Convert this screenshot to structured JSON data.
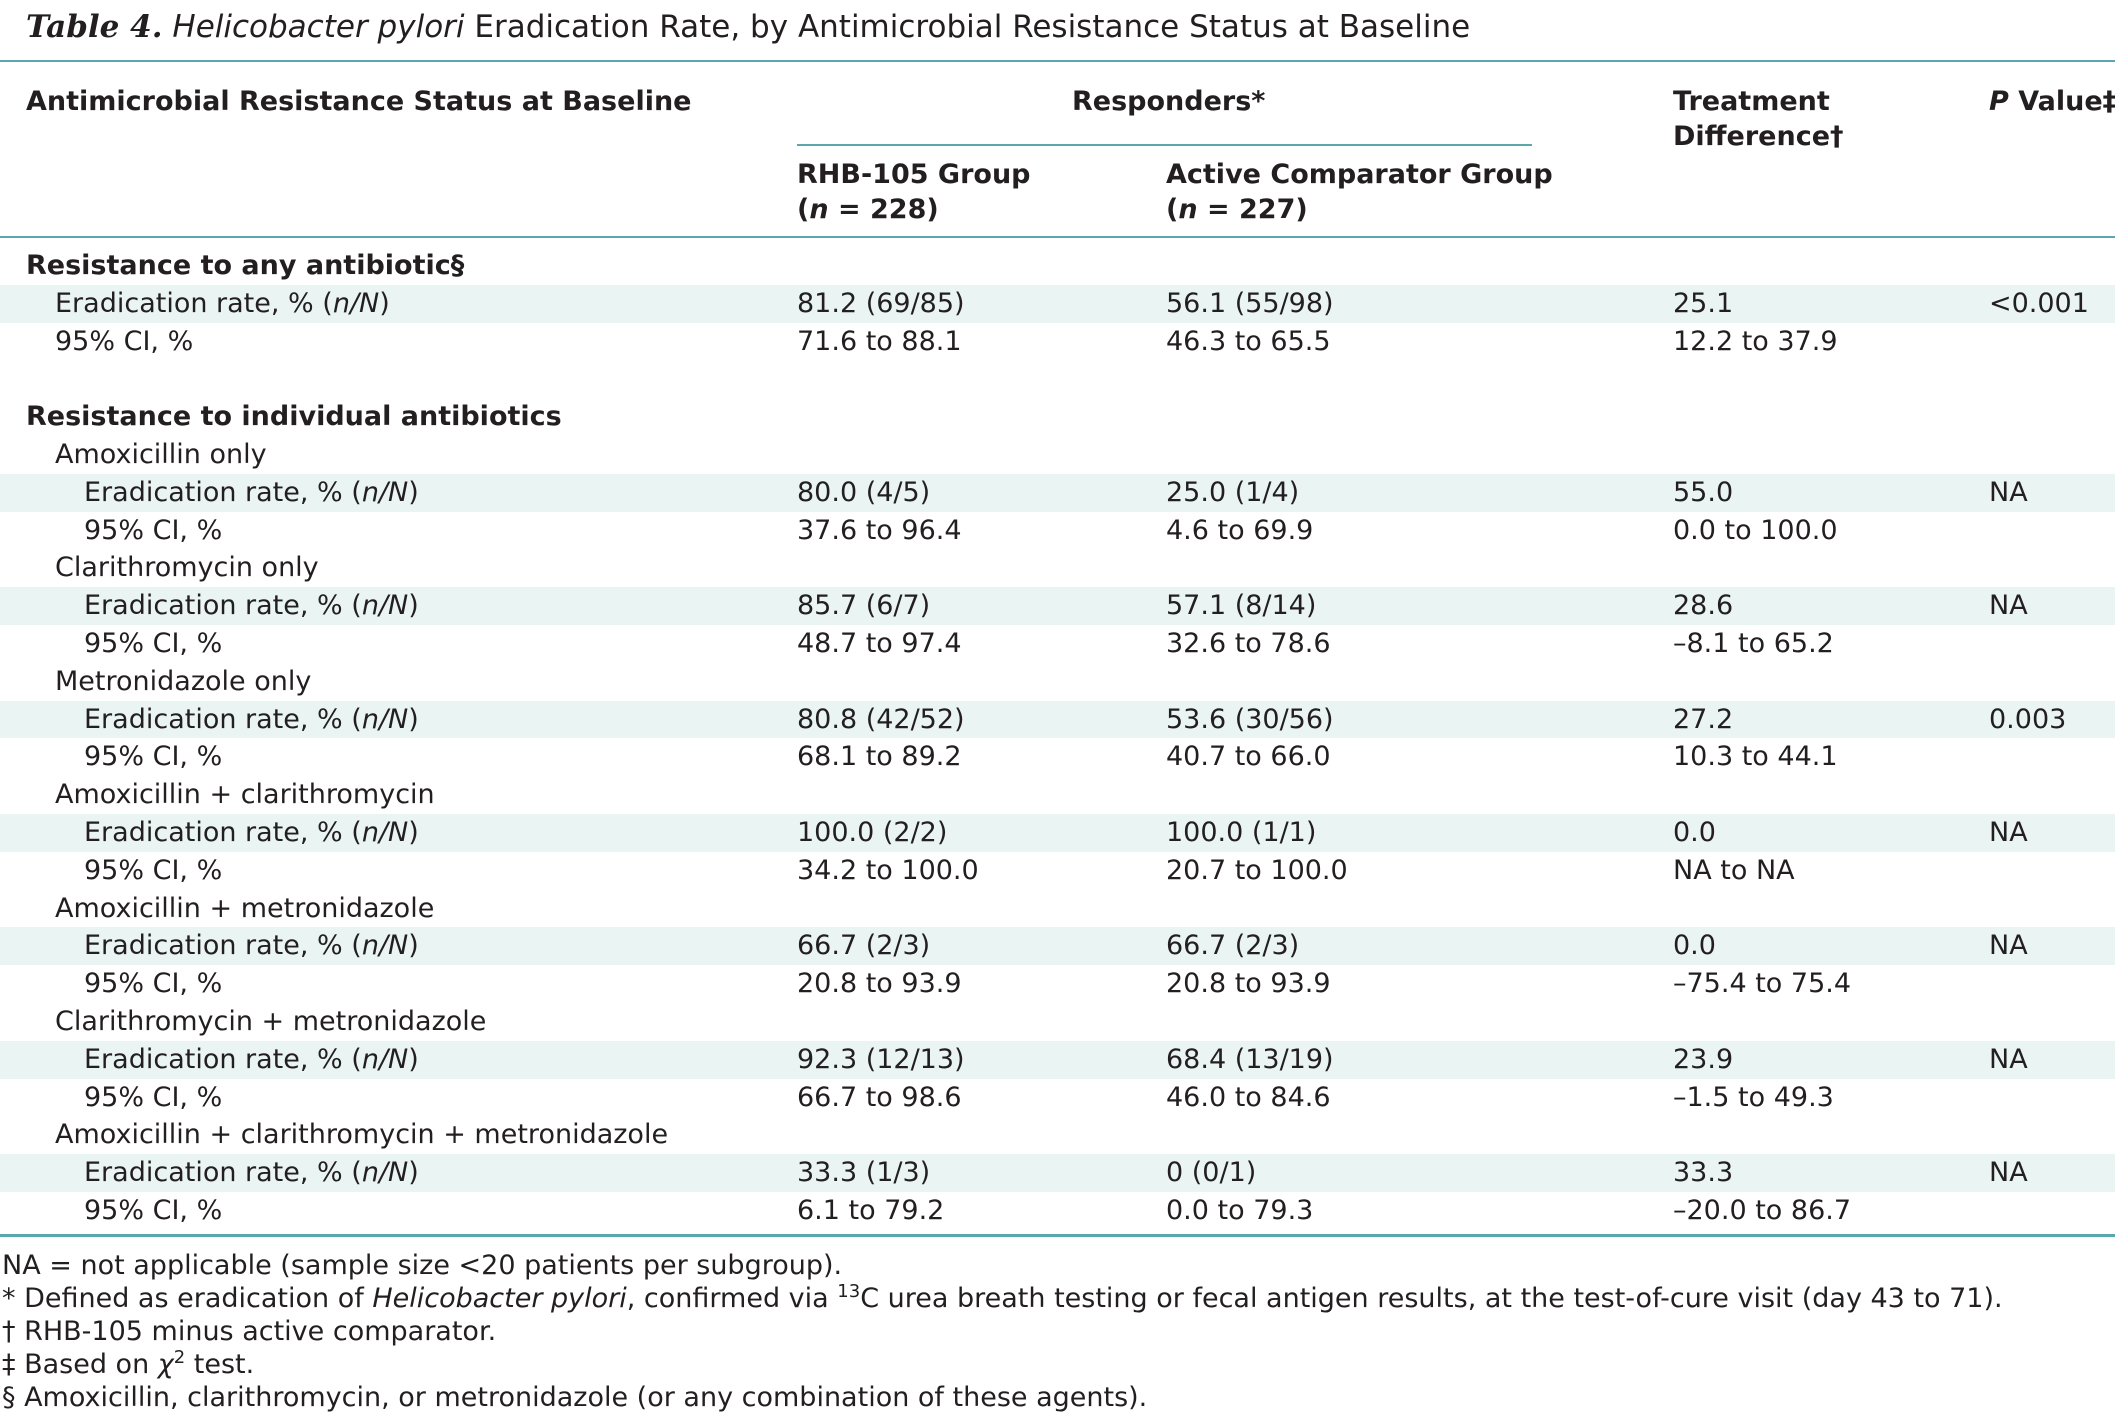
{
  "title": {
    "number": "Table 4.",
    "genus": "Helicobacter pylori",
    "rest": "Eradication Rate, by Antimicrobial Resistance Status at Baseline"
  },
  "header": {
    "col_status": "Antimicrobial Resistance Status at Baseline",
    "responders": "Responders*",
    "rhb_group": "RHB-105 Group",
    "rhb_n_letter": "n",
    "rhb_n_value": " = 228)",
    "active_group": "Active Comparator Group",
    "active_n_letter": "n",
    "active_n_value": " = 227)",
    "treatment_line1": "Treatment",
    "treatment_line2": "Difference†",
    "pvalue_p": "P",
    "pvalue_rest": " Value‡"
  },
  "rows": [
    {
      "label": "Resistance to any antibiotic§",
      "bold": true,
      "indent": 0,
      "shade": false,
      "rhb": "",
      "active": "",
      "diff": "",
      "p": ""
    },
    {
      "label": "Eradication rate, % (n/N)",
      "indent": 1,
      "shade": true,
      "rhb": "81.2 (69/85)",
      "active": "56.1 (55/98)",
      "diff": "25.1",
      "p": "<0.001"
    },
    {
      "label": "95% CI, %",
      "indent": 1,
      "shade": false,
      "rhb": "71.6 to 88.1",
      "active": "46.3 to 65.5",
      "diff": "12.2 to 37.9",
      "p": ""
    },
    {
      "label": "",
      "indent": 0,
      "shade": false,
      "rhb": "",
      "active": "",
      "diff": "",
      "p": ""
    },
    {
      "label": "Resistance to individual antibiotics",
      "bold": true,
      "indent": 0,
      "shade": false,
      "rhb": "",
      "active": "",
      "diff": "",
      "p": ""
    },
    {
      "label": "Amoxicillin only",
      "indent": 1,
      "shade": false,
      "rhb": "",
      "active": "",
      "diff": "",
      "p": ""
    },
    {
      "label": "Eradication rate, % (n/N)",
      "indent": 2,
      "shade": true,
      "rhb": "80.0 (4/5)",
      "active": "25.0 (1/4)",
      "diff": "55.0",
      "p": "NA"
    },
    {
      "label": "95% CI, %",
      "indent": 2,
      "shade": false,
      "rhb": "37.6 to 96.4",
      "active": "4.6 to 69.9",
      "diff": "0.0 to 100.0",
      "p": ""
    },
    {
      "label": "Clarithromycin only",
      "indent": 1,
      "shade": false,
      "rhb": "",
      "active": "",
      "diff": "",
      "p": ""
    },
    {
      "label": "Eradication rate, % (n/N)",
      "indent": 2,
      "shade": true,
      "rhb": "85.7 (6/7)",
      "active": "57.1 (8/14)",
      "diff": "28.6",
      "p": "NA"
    },
    {
      "label": "95% CI, %",
      "indent": 2,
      "shade": false,
      "rhb": "48.7 to 97.4",
      "active": "32.6 to 78.6",
      "diff": "–8.1 to 65.2",
      "p": ""
    },
    {
      "label": "Metronidazole only",
      "indent": 1,
      "shade": false,
      "rhb": "",
      "active": "",
      "diff": "",
      "p": ""
    },
    {
      "label": "Eradication rate, % (n/N)",
      "indent": 2,
      "shade": true,
      "rhb": "80.8 (42/52)",
      "active": "53.6 (30/56)",
      "diff": "27.2",
      "p": "0.003"
    },
    {
      "label": "95% CI, %",
      "indent": 2,
      "shade": false,
      "rhb": "68.1 to 89.2",
      "active": "40.7 to 66.0",
      "diff": "10.3 to 44.1",
      "p": ""
    },
    {
      "label": "Amoxicillin + clarithromycin",
      "indent": 1,
      "shade": false,
      "rhb": "",
      "active": "",
      "diff": "",
      "p": ""
    },
    {
      "label": "Eradication rate, % (n/N)",
      "indent": 2,
      "shade": true,
      "rhb": "100.0 (2/2)",
      "active": "100.0 (1/1)",
      "diff": "0.0",
      "p": "NA"
    },
    {
      "label": "95% CI, %",
      "indent": 2,
      "shade": false,
      "rhb": "34.2 to 100.0",
      "active": "20.7 to 100.0",
      "diff": "NA to NA",
      "p": ""
    },
    {
      "label": "Amoxicillin + metronidazole",
      "indent": 1,
      "shade": false,
      "rhb": "",
      "active": "",
      "diff": "",
      "p": ""
    },
    {
      "label": "Eradication rate, % (n/N)",
      "indent": 2,
      "shade": true,
      "rhb": "66.7 (2/3)",
      "active": "66.7 (2/3)",
      "diff": "0.0",
      "p": "NA"
    },
    {
      "label": "95% CI, %",
      "indent": 2,
      "shade": false,
      "rhb": "20.8 to 93.9",
      "active": "20.8 to 93.9",
      "diff": "–75.4 to 75.4",
      "p": ""
    },
    {
      "label": "Clarithromycin + metronidazole",
      "indent": 1,
      "shade": false,
      "rhb": "",
      "active": "",
      "diff": "",
      "p": ""
    },
    {
      "label": "Eradication rate, % (n/N)",
      "indent": 2,
      "shade": true,
      "rhb": "92.3 (12/13)",
      "active": "68.4 (13/19)",
      "diff": "23.9",
      "p": "NA"
    },
    {
      "label": "95% CI, %",
      "indent": 2,
      "shade": false,
      "rhb": "66.7 to 98.6",
      "active": "46.0 to 84.6",
      "diff": "–1.5 to 49.3",
      "p": ""
    },
    {
      "label": "Amoxicillin + clarithromycin + metronidazole",
      "indent": 1,
      "shade": false,
      "rhb": "",
      "active": "",
      "diff": "",
      "p": ""
    },
    {
      "label": "Eradication rate, % (n/N)",
      "indent": 2,
      "shade": true,
      "rhb": "33.3 (1/3)",
      "active": "0 (0/1)",
      "diff": "33.3",
      "p": "NA"
    },
    {
      "label": "95% CI, %",
      "indent": 2,
      "shade": false,
      "rhb": "6.1 to 79.2",
      "active": "0.0 to 79.3",
      "diff": "–20.0 to 86.7",
      "p": ""
    }
  ],
  "footnotes": {
    "na": "NA = not applicable (sample size <20 patients per subgroup).",
    "star_a": "* Defined as eradication of ",
    "star_genus": "Helicobacter pylori",
    "star_b": ", confirmed via ",
    "star_sup": "13",
    "star_c": "C urea breath testing or fecal antigen results, at the test-of-cure visit (day 43 to 71).",
    "dagger": "† RHB-105 minus active comparator.",
    "ddagger_a": "‡ Based on ",
    "ddagger_chi": "χ",
    "ddagger_sup": "2",
    "ddagger_b": " test.",
    "section": "§ Amoxicillin, clarithromycin, or metronidazole (or any combination of these agents)."
  },
  "colors": {
    "rule": "#5aa8ad",
    "shade": "#e9f4f3",
    "text": "#231f20"
  }
}
